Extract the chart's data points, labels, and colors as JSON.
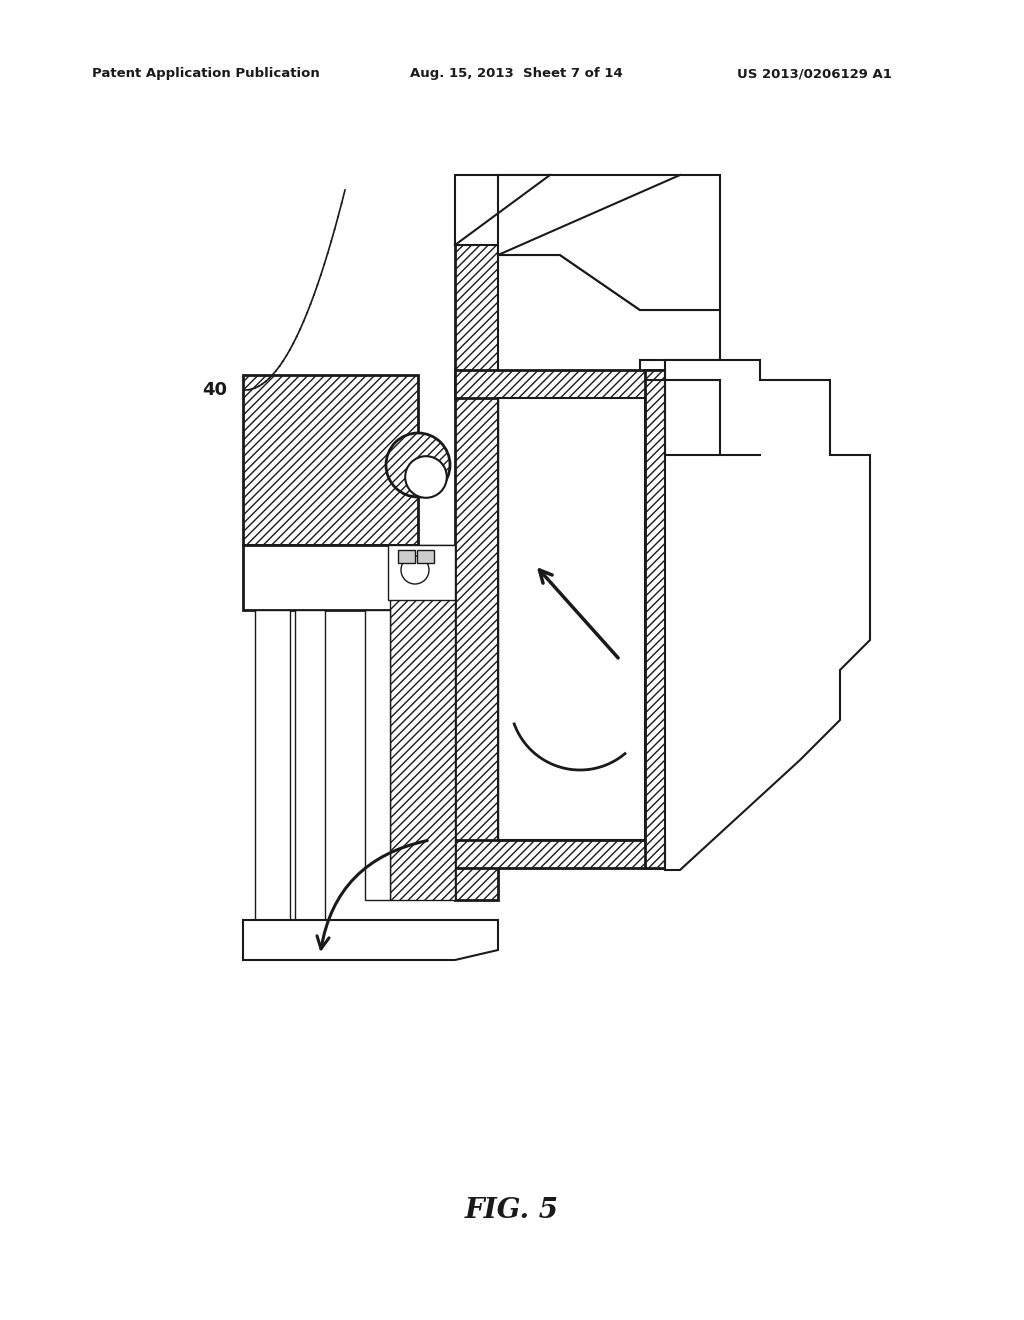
{
  "bg_color": "#ffffff",
  "line_color": "#1a1a1a",
  "fig_width": 10.24,
  "fig_height": 13.2,
  "header_left": "Patent Application Publication",
  "header_mid": "Aug. 15, 2013  Sheet 7 of 14",
  "header_right": "US 2013/0206129 A1",
  "fig_label": "FIG. 5",
  "label_40": "40"
}
